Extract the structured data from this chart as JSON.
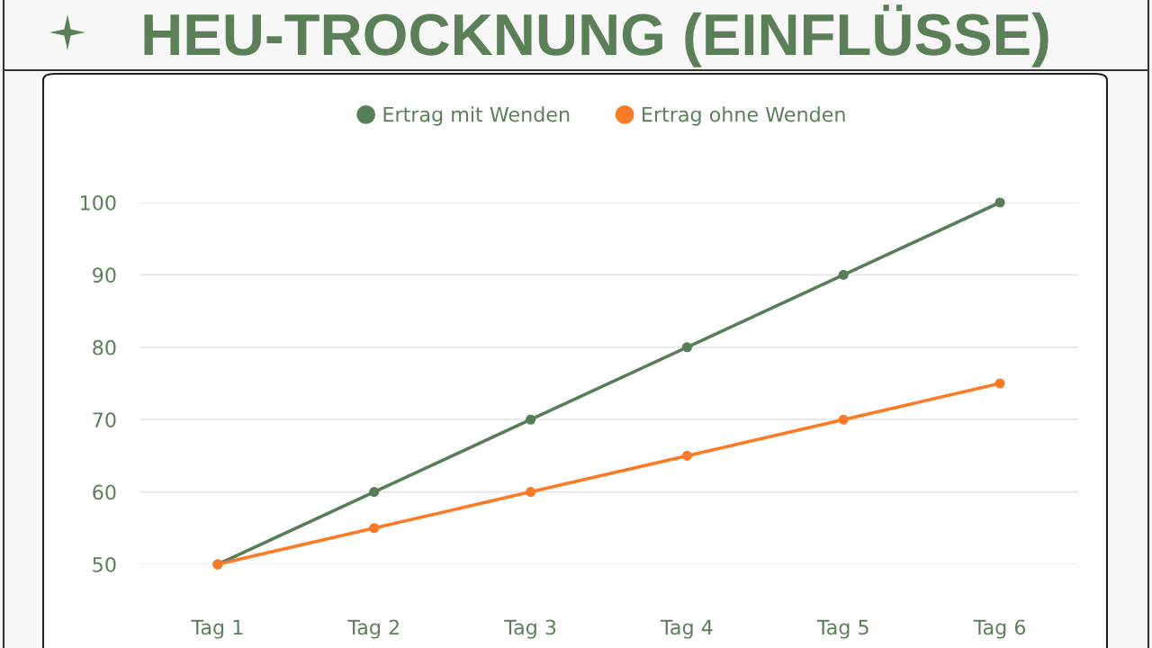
{
  "chart_data": {
    "type": "line",
    "title": "HEU-TROCKNUNG (EINFLÜSSE)",
    "categories": [
      "Tag 1",
      "Tag 2",
      "Tag 3",
      "Tag 4",
      "Tag 5",
      "Tag 6"
    ],
    "series": [
      {
        "name": "Ertrag mit Wenden",
        "color": "#587e57",
        "values": [
          50,
          60,
          70,
          80,
          90,
          100
        ]
      },
      {
        "name": "Ertrag ohne Wenden",
        "color": "#fa7a26",
        "values": [
          50,
          55,
          60,
          65,
          70,
          75
        ]
      }
    ],
    "ylim": [
      50,
      100
    ],
    "yticks": [
      50,
      60,
      70,
      80,
      90,
      100
    ],
    "grid": "y",
    "legend": "top",
    "marker": "circle",
    "line_style": "solid"
  }
}
